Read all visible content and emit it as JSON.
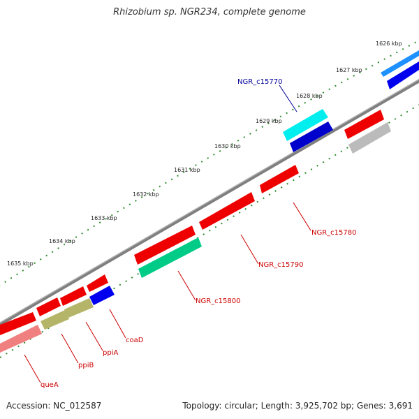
{
  "title": "Rhizobium sp. NGR234, complete genome",
  "accession": "Accession: NC_012587",
  "summary": "Topology: circular; Length: 3,925,702 bp; Genes: 3,691",
  "colors": {
    "backbone": "#808080",
    "tick": "#2e8b2e",
    "gene_label_red": "#cc0000",
    "gene_label_blue": "#000099"
  },
  "kbp_labels": [
    "1626 kbp",
    "1627 kbp",
    "1628 kbp",
    "1629 kbp",
    "1630 kbp",
    "1631 kbp",
    "1632 kbp",
    "1633 kbp",
    "1634 kbp",
    "1635 kbp"
  ],
  "gene_labels": [
    "NGR_c15770",
    "NGR_c15780",
    "NGR_c15790",
    "NGR_c15800",
    "coaD",
    "ppiA",
    "ppiB",
    "queA"
  ]
}
